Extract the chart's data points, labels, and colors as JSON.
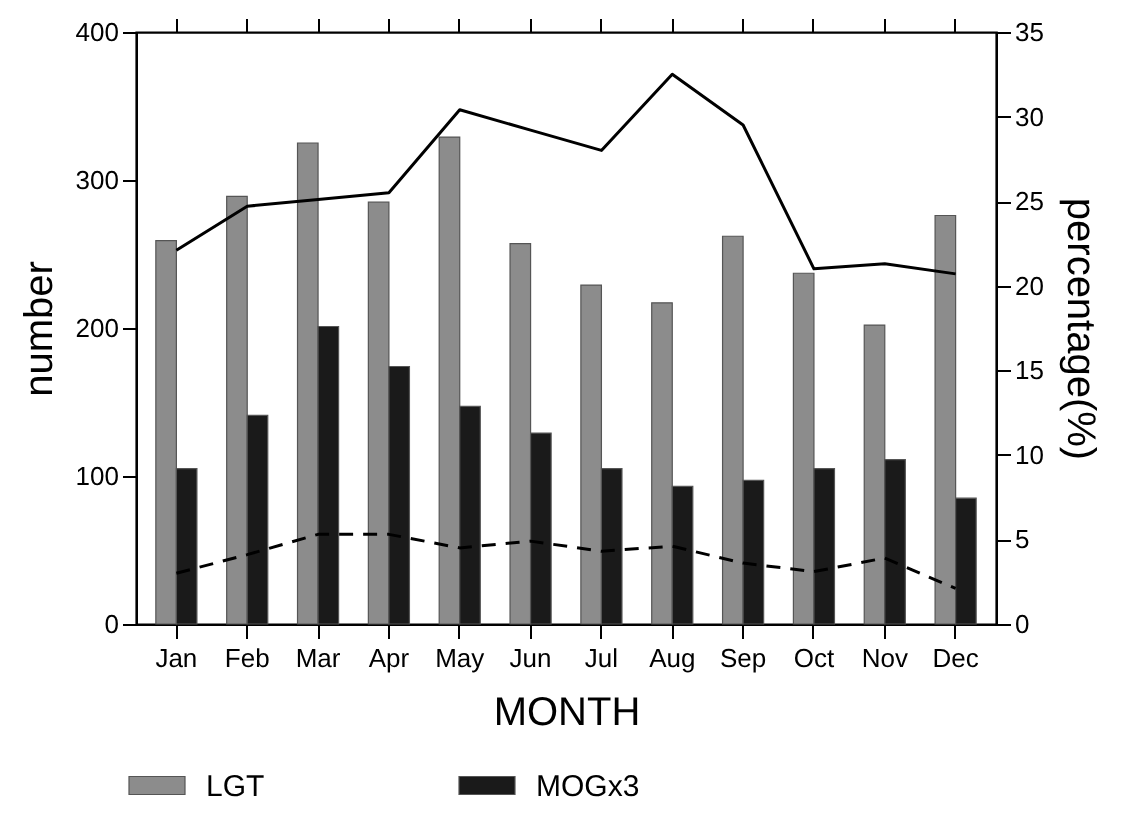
{
  "chart_data": {
    "type": "bar",
    "categories": [
      "Jan",
      "Feb",
      "Mar",
      "Apr",
      "May",
      "Jun",
      "Jul",
      "Aug",
      "Sep",
      "Oct",
      "Nov",
      "Dec"
    ],
    "series": [
      {
        "name": "LGT",
        "color": "#8c8c8c",
        "values": [
          259,
          289,
          325,
          285,
          329,
          257,
          229,
          217,
          262,
          237,
          202,
          276
        ]
      },
      {
        "name": "MOGx3",
        "color": "#1a1a1a",
        "values": [
          105,
          141,
          201,
          174,
          147,
          129,
          105,
          93,
          97,
          105,
          111,
          85
        ]
      },
      {
        "type": "line",
        "axis": "y2",
        "color": "#000000",
        "line_style": "solid",
        "values": [
          22.1,
          24.7,
          25.1,
          25.5,
          30.4,
          29.2,
          28.0,
          32.5,
          29.5,
          21.0,
          21.3,
          20.7
        ]
      },
      {
        "type": "line",
        "axis": "y2",
        "color": "#000000",
        "line_style": "dashed",
        "values": [
          3.0,
          4.1,
          5.3,
          5.3,
          4.5,
          4.9,
          4.3,
          4.6,
          3.6,
          3.1,
          3.9,
          2.1
        ]
      }
    ],
    "xlabel": "MONTH",
    "ylabel": "number",
    "y2label": "percentage(%)",
    "ylim": [
      0,
      400
    ],
    "yticks": [
      0,
      100,
      200,
      300,
      400
    ],
    "y2lim": [
      0,
      35
    ],
    "y2ticks": [
      0,
      5,
      10,
      15,
      20,
      25,
      30,
      35
    ],
    "legend": "bottom",
    "grid": false
  }
}
